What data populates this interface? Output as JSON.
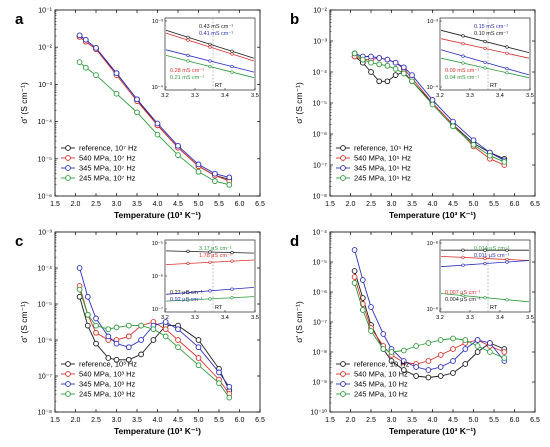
{
  "colors": {
    "reference": "#1a1a1a",
    "p540": "#d9302c",
    "p345": "#2b2fbf",
    "p245": "#2e9a3a"
  },
  "chart_data": [
    {
      "type": "scatter",
      "panel": "a",
      "ylog": true,
      "ylim": [
        1e-06,
        0.1
      ],
      "xlim": [
        1.5,
        6.5
      ],
      "xticks": [
        1.5,
        2.0,
        2.5,
        3.0,
        3.5,
        4.0,
        4.5,
        5.0,
        5.5,
        6.0,
        6.5
      ],
      "xtick_labels": [
        "1.5",
        "2.0",
        "2.5",
        "3.0",
        "3.5",
        "4.0",
        "4.5",
        "5.0",
        "5.5",
        "6.0",
        "6.5"
      ],
      "yticks": [
        -6,
        -5,
        -4,
        -3,
        -2,
        -1
      ],
      "xlabel": "Temperature (10³ K⁻¹)",
      "ylabel": "σ' (S cm⁻¹)",
      "legend_position": "bottom-left",
      "series": [
        {
          "name": "reference, 10⁷ Hz",
          "color": "reference",
          "x": [
            2.1,
            2.25,
            2.5,
            3.0,
            3.5,
            4.0,
            4.5,
            5.0,
            5.4,
            5.75
          ],
          "logy": [
            -1.72,
            -1.85,
            -2.05,
            -2.7,
            -3.4,
            -4.1,
            -4.7,
            -5.2,
            -5.45,
            -5.55
          ]
        },
        {
          "name": "540 MPa, 10⁷ Hz",
          "color": "p540",
          "x": [
            2.1,
            2.25,
            2.5,
            3.0,
            3.5,
            4.0,
            4.5,
            5.0,
            5.4,
            5.75
          ],
          "logy": [
            -1.72,
            -1.85,
            -2.05,
            -2.75,
            -3.45,
            -4.1,
            -4.7,
            -5.2,
            -5.45,
            -5.6
          ]
        },
        {
          "name": "345 MPa, 10⁷ Hz",
          "color": "p345",
          "x": [
            2.1,
            2.25,
            2.5,
            3.0,
            3.5,
            4.0,
            4.5,
            5.0,
            5.4,
            5.75
          ],
          "logy": [
            -1.68,
            -1.8,
            -2.02,
            -2.7,
            -3.4,
            -4.05,
            -4.65,
            -5.15,
            -5.4,
            -5.5
          ]
        },
        {
          "name": "245 MPa, 10⁷ Hz",
          "color": "p245",
          "x": [
            2.1,
            2.25,
            2.5,
            3.0,
            3.5,
            4.0,
            4.5,
            5.0,
            5.4,
            5.75
          ],
          "logy": [
            -2.4,
            -2.55,
            -2.75,
            -3.25,
            -3.75,
            -4.35,
            -4.9,
            -5.35,
            -5.6,
            -5.7
          ]
        }
      ],
      "inset": {
        "xlim": [
          3.2,
          3.5
        ],
        "xticks": [
          "3.2",
          "3.3",
          "3.4",
          "3.5"
        ],
        "ylabels": [
          "10⁻³",
          "10⁻⁴"
        ],
        "rt_label": "RT",
        "rt_x": 3.36,
        "lines": [
          [
            -3.1,
            -3.6
          ],
          [
            -3.15,
            -3.65
          ],
          [
            -3.45,
            -3.85
          ],
          [
            -3.55,
            -3.95
          ]
        ],
        "labels": [
          {
            "text": "0.43 mS cm⁻¹",
            "color": "reference"
          },
          {
            "text": "0.41 mS cm⁻¹",
            "color": "p345"
          },
          {
            "text": "0.28 mS cm⁻¹",
            "color": "p540"
          },
          {
            "text": "0.21 mS cm⁻¹",
            "color": "p245"
          }
        ]
      }
    },
    {
      "type": "scatter",
      "panel": "b",
      "ylog": true,
      "ylim": [
        1e-08,
        0.01
      ],
      "xlim": [
        1.5,
        6.5
      ],
      "xticks": [
        1.5,
        2.0,
        2.5,
        3.0,
        3.5,
        4.0,
        4.5,
        5.0,
        5.5,
        6.0,
        6.5
      ],
      "xtick_labels": [
        "1.5",
        "2.0",
        "2.5",
        "3.0",
        "3.5",
        "4.0",
        "4.5",
        "5.0",
        "5.5",
        "6.0",
        "6.5"
      ],
      "yticks": [
        -8,
        -7,
        -6,
        -5,
        -4,
        -3,
        -2
      ],
      "xlabel": "Temperature (10³ K⁻¹)",
      "ylabel": "σ' (S cm⁻¹)",
      "legend_position": "bottom-left",
      "series": [
        {
          "name": "reference, 10⁵ Hz",
          "color": "reference",
          "x": [
            2.1,
            2.3,
            2.5,
            2.7,
            2.9,
            3.1,
            3.3,
            3.5,
            4.0,
            4.5,
            5.0,
            5.4,
            5.75
          ],
          "logy": [
            -3.5,
            -3.7,
            -4.0,
            -4.3,
            -4.3,
            -4.1,
            -4.0,
            -4.3,
            -5.0,
            -5.7,
            -6.3,
            -6.6,
            -6.8
          ]
        },
        {
          "name": "540 MPa, 10⁵ Hz",
          "color": "p540",
          "x": [
            2.1,
            2.3,
            2.5,
            2.7,
            2.9,
            3.1,
            3.3,
            3.5,
            4.0,
            4.5,
            5.0,
            5.4,
            5.75
          ],
          "logy": [
            -3.5,
            -3.6,
            -3.6,
            -3.55,
            -3.6,
            -3.7,
            -3.9,
            -4.2,
            -5.0,
            -5.7,
            -6.4,
            -6.8,
            -7.0
          ]
        },
        {
          "name": "345 MPa, 10⁵ Hz",
          "color": "p345",
          "x": [
            2.1,
            2.3,
            2.5,
            2.7,
            2.9,
            3.1,
            3.3,
            3.5,
            4.0,
            4.5,
            5.0,
            5.4,
            5.75
          ],
          "logy": [
            -3.4,
            -3.5,
            -3.5,
            -3.55,
            -3.6,
            -3.7,
            -3.85,
            -4.1,
            -4.9,
            -5.6,
            -6.2,
            -6.6,
            -6.85
          ]
        },
        {
          "name": "245 MPa, 10⁵ Hz",
          "color": "p245",
          "x": [
            2.1,
            2.3,
            2.5,
            2.7,
            2.9,
            3.1,
            3.3,
            3.5,
            4.0,
            4.5,
            5.0,
            5.4,
            5.75
          ],
          "logy": [
            -3.4,
            -3.6,
            -3.7,
            -3.75,
            -3.8,
            -3.9,
            -4.05,
            -4.3,
            -5.05,
            -5.75,
            -6.35,
            -6.7,
            -6.9
          ]
        }
      ],
      "inset": {
        "xlim": [
          3.2,
          3.5
        ],
        "xticks": [
          "3.2",
          "3.3",
          "3.4",
          "3.5"
        ],
        "ylabels": [
          "10⁻³",
          "10⁻⁴"
        ],
        "rt_label": "RT",
        "rt_x": 3.36,
        "lines": [
          [
            -3.5,
            -3.9
          ],
          [
            -3.65,
            -4.0
          ],
          [
            -3.85,
            -4.3
          ],
          [
            -4.0,
            -4.35
          ]
        ],
        "labels": [
          {
            "text": "0.15 mS cm⁻¹",
            "color": "p345"
          },
          {
            "text": "0.10 mS cm⁻¹",
            "color": "reference"
          },
          {
            "text": "0.09 mS cm⁻¹",
            "color": "p540"
          },
          {
            "text": "0.04 mS cm⁻¹",
            "color": "p245"
          }
        ]
      }
    },
    {
      "type": "scatter",
      "panel": "c",
      "ylog": true,
      "ylim": [
        1e-08,
        0.001
      ],
      "xlim": [
        1.5,
        6.5
      ],
      "xticks": [
        1.5,
        2.0,
        2.5,
        3.0,
        3.5,
        4.0,
        4.5,
        5.0,
        5.5,
        6.0,
        6.5
      ],
      "xtick_labels": [
        "1.5",
        "2.0",
        "2.5",
        "3.0",
        "3.5",
        "4.0",
        "4.5",
        "5.0",
        "5.5",
        "6.0",
        "6.5"
      ],
      "yticks": [
        -8,
        -7,
        -6,
        -5,
        -4,
        -3
      ],
      "xlabel": "Temperature (10³ K⁻¹)",
      "ylabel": "σ' (S cm⁻¹)",
      "legend_position": "bottom-left",
      "series": [
        {
          "name": "reference, 10³ Hz",
          "color": "reference",
          "x": [
            2.1,
            2.3,
            2.5,
            2.8,
            3.0,
            3.3,
            3.6,
            3.9,
            4.2,
            4.5,
            5.0,
            5.5,
            5.75
          ],
          "logy": [
            -4.8,
            -5.6,
            -6.1,
            -6.5,
            -6.55,
            -6.55,
            -6.4,
            -6.0,
            -5.6,
            -5.6,
            -6.0,
            -6.8,
            -7.4
          ]
        },
        {
          "name": "540 MPa, 10³ Hz",
          "color": "p540",
          "x": [
            2.1,
            2.3,
            2.5,
            2.8,
            3.0,
            3.3,
            3.6,
            3.9,
            4.2,
            4.5,
            5.0,
            5.5,
            5.75
          ],
          "logy": [
            -4.5,
            -5.3,
            -5.8,
            -6.0,
            -6.0,
            -5.9,
            -5.6,
            -5.5,
            -5.7,
            -6.0,
            -6.5,
            -7.1,
            -7.5
          ]
        },
        {
          "name": "345 MPa, 10³ Hz",
          "color": "p345",
          "x": [
            2.1,
            2.3,
            2.5,
            2.8,
            3.0,
            3.3,
            3.6,
            3.9,
            4.2,
            4.5,
            5.0,
            5.5,
            5.75
          ],
          "logy": [
            -4.0,
            -4.8,
            -5.4,
            -5.9,
            -6.1,
            -6.2,
            -6.0,
            -5.6,
            -5.5,
            -5.7,
            -6.2,
            -6.9,
            -7.3
          ]
        },
        {
          "name": "245 MPa, 10³ Hz",
          "color": "p245",
          "x": [
            2.1,
            2.3,
            2.5,
            2.8,
            3.0,
            3.3,
            3.6,
            3.9,
            4.2,
            4.5,
            5.0,
            5.5,
            5.75
          ],
          "logy": [
            -4.6,
            -5.3,
            -5.6,
            -5.7,
            -5.65,
            -5.6,
            -5.6,
            -5.7,
            -5.9,
            -6.2,
            -6.7,
            -7.2,
            -7.6
          ]
        }
      ],
      "inset": {
        "xlim": [
          3.2,
          3.5
        ],
        "xticks": [
          "3.2",
          "3.3",
          "3.4",
          "3.5"
        ],
        "ylabels": [
          "10⁻⁵",
          "10⁻⁶",
          "10⁻⁷"
        ],
        "rt_label": "RT",
        "rt_x": 3.36,
        "lines": [
          [
            -5.5,
            -5.55
          ],
          [
            -5.8,
            -5.7
          ],
          [
            -6.45,
            -6.3
          ],
          [
            -6.6,
            -6.5
          ]
        ],
        "labels": [
          {
            "text": "3.17 μS cm⁻¹",
            "color": "p245"
          },
          {
            "text": "1.78 μS cm⁻¹",
            "color": "p540"
          },
          {
            "text": "0.27 μS cm⁻¹",
            "color": "reference"
          },
          {
            "text": "0.92 μS cm⁻¹",
            "color": "p345"
          }
        ]
      }
    },
    {
      "type": "scatter",
      "panel": "d",
      "ylog": true,
      "ylim": [
        1e-10,
        0.0001
      ],
      "xlim": [
        1.5,
        6.5
      ],
      "xticks": [
        1.5,
        2.0,
        2.5,
        3.0,
        3.5,
        4.0,
        4.5,
        5.0,
        5.5,
        6.0,
        6.5
      ],
      "xtick_labels": [
        "1.5",
        "2.0",
        "2.5",
        "3.0",
        "3.5",
        "4.0",
        "4.5",
        "5.0",
        "5.5",
        "6.0",
        "6.5"
      ],
      "yticks": [
        -10,
        -9,
        -8,
        -7,
        -6,
        -5,
        -4
      ],
      "xlabel": "Temperature (10³ K⁻¹)",
      "ylabel": "σ' (S cm⁻¹)",
      "legend_position": "bottom-left",
      "series": [
        {
          "name": "reference, 10 Hz",
          "color": "reference",
          "x": [
            2.1,
            2.3,
            2.5,
            2.8,
            3.0,
            3.3,
            3.6,
            3.9,
            4.2,
            4.5,
            4.8,
            5.1,
            5.4,
            5.75
          ],
          "logy": [
            -5.3,
            -6.2,
            -7.1,
            -7.9,
            -8.3,
            -8.6,
            -8.8,
            -8.85,
            -8.8,
            -8.7,
            -8.4,
            -8.0,
            -7.7,
            -7.9
          ]
        },
        {
          "name": "540 MPa, 10 Hz",
          "color": "p540",
          "x": [
            2.1,
            2.3,
            2.5,
            2.8,
            3.0,
            3.3,
            3.6,
            3.9,
            4.2,
            4.5,
            4.8,
            5.1,
            5.4,
            5.75
          ],
          "logy": [
            -5.5,
            -6.4,
            -7.2,
            -7.8,
            -8.1,
            -8.35,
            -8.4,
            -8.3,
            -8.1,
            -7.9,
            -7.7,
            -7.6,
            -7.8,
            -8.0
          ]
        },
        {
          "name": "345 MPa, 10 Hz",
          "color": "p345",
          "x": [
            2.1,
            2.3,
            2.5,
            2.8,
            3.0,
            3.3,
            3.6,
            3.9,
            4.2,
            4.5,
            4.8,
            5.1,
            5.4,
            5.75
          ],
          "logy": [
            -4.6,
            -5.6,
            -6.5,
            -7.4,
            -7.9,
            -8.3,
            -8.5,
            -8.6,
            -8.5,
            -8.3,
            -7.9,
            -7.6,
            -7.7,
            -8.3
          ]
        },
        {
          "name": "245 MPa, 10 Hz",
          "color": "p245",
          "x": [
            2.1,
            2.3,
            2.5,
            2.8,
            3.0,
            3.3,
            3.6,
            3.9,
            4.2,
            4.5,
            4.8,
            5.1,
            5.4,
            5.75
          ],
          "logy": [
            -5.7,
            -6.6,
            -7.3,
            -7.9,
            -8.0,
            -7.95,
            -7.8,
            -7.7,
            -7.6,
            -7.55,
            -7.6,
            -7.8,
            -8.0,
            -8.2
          ]
        }
      ],
      "inset": {
        "xlim": [
          3.2,
          3.5
        ],
        "xticks": [
          "3.2",
          "3.3",
          "3.4",
          "3.5"
        ],
        "ylabels": [
          "10⁻⁸",
          "10⁻⁹"
        ],
        "rt_label": "RT",
        "rt_x": 3.36,
        "lines": [
          [
            -7.85,
            -7.85
          ],
          [
            -8.0,
            -8.1
          ],
          [
            -8.25,
            -8.1
          ],
          [
            -8.9,
            -9.1
          ]
        ],
        "labels": [
          {
            "text": "0.014 μS cm⁻¹",
            "color": "p245"
          },
          {
            "text": "0.011 μS cm⁻¹",
            "color": "p345"
          },
          {
            "text": "0.007 μS cm⁻¹",
            "color": "p540"
          },
          {
            "text": "0.004 μS cm⁻¹",
            "color": "reference"
          }
        ]
      }
    }
  ]
}
